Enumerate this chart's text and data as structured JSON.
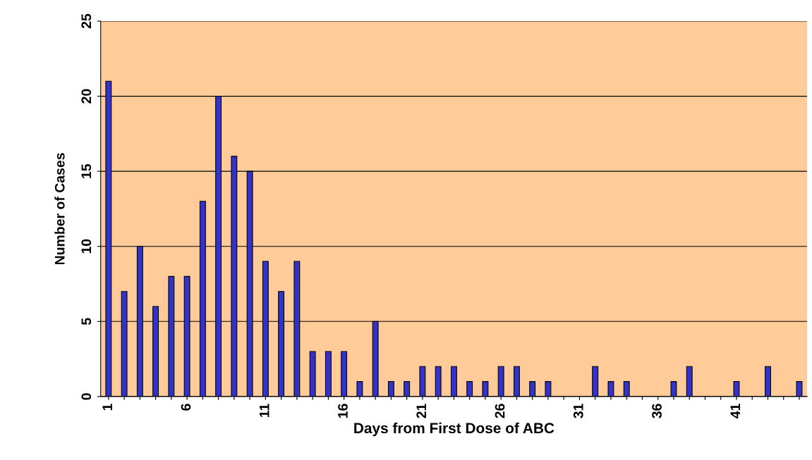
{
  "chart_data": {
    "type": "bar",
    "xlabel": "Days from First Dose of ABC",
    "ylabel": "Number of Cases",
    "categories": [
      "1",
      null,
      null,
      null,
      null,
      "6",
      null,
      null,
      null,
      null,
      "11",
      null,
      null,
      null,
      null,
      "16",
      null,
      null,
      null,
      null,
      "21",
      null,
      null,
      null,
      null,
      "26",
      null,
      null,
      null,
      null,
      "31",
      null,
      null,
      null,
      null,
      "36",
      null,
      null,
      null,
      null,
      "41",
      null,
      null,
      null,
      null
    ],
    "values": [
      21,
      7,
      10,
      6,
      8,
      8,
      13,
      20,
      16,
      15,
      9,
      7,
      9,
      3,
      3,
      3,
      1,
      5,
      1,
      1,
      2,
      2,
      2,
      1,
      1,
      2,
      2,
      1,
      1,
      0,
      0,
      2,
      1,
      1,
      0,
      0,
      1,
      2,
      0,
      0,
      1,
      0,
      2,
      0,
      1
    ],
    "color": "#3333cc",
    "ylim": [
      0,
      25
    ],
    "yticks": [
      0,
      5,
      10,
      15,
      20,
      25
    ],
    "grid": "y",
    "legend": false
  }
}
